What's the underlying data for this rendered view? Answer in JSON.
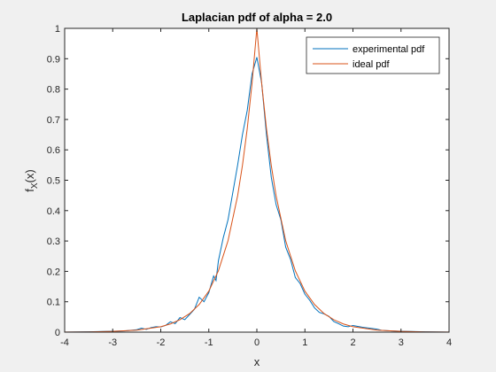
{
  "chart_data": {
    "type": "line",
    "title": "Laplacian pdf of alpha = 2.0",
    "xlabel": "x",
    "ylabel_main": "f",
    "ylabel_sub": "X",
    "ylabel_tail": "(x)",
    "xlim": [
      -4,
      4
    ],
    "ylim": [
      0,
      1
    ],
    "xticks": [
      "-4",
      "-3",
      "-2",
      "-1",
      "0",
      "1",
      "2",
      "3",
      "4"
    ],
    "yticks": [
      "0",
      "0.1",
      "0.2",
      "0.3",
      "0.4",
      "0.5",
      "0.6",
      "0.7",
      "0.8",
      "0.9",
      "1"
    ],
    "grid": false,
    "legend_position": "top-right",
    "series": [
      {
        "name": "experimental pdf",
        "color": "#0072BD",
        "x": [
          -4.0,
          -3.5,
          -3.0,
          -2.75,
          -2.5,
          -2.4,
          -2.3,
          -2.2,
          -2.1,
          -2.0,
          -1.9,
          -1.8,
          -1.7,
          -1.6,
          -1.5,
          -1.4,
          -1.3,
          -1.2,
          -1.1,
          -1.0,
          -0.9,
          -0.85,
          -0.8,
          -0.7,
          -0.6,
          -0.5,
          -0.4,
          -0.3,
          -0.2,
          -0.1,
          0.0,
          0.1,
          0.2,
          0.3,
          0.4,
          0.5,
          0.6,
          0.7,
          0.8,
          0.9,
          1.0,
          1.1,
          1.2,
          1.3,
          1.4,
          1.5,
          1.6,
          1.7,
          1.8,
          1.9,
          2.0,
          2.2,
          2.4,
          2.5,
          2.6,
          2.8,
          3.0,
          3.5,
          4.0
        ],
        "y": [
          0.0,
          0.001,
          0.003,
          0.004,
          0.008,
          0.013,
          0.009,
          0.015,
          0.018,
          0.017,
          0.022,
          0.034,
          0.028,
          0.048,
          0.041,
          0.058,
          0.075,
          0.115,
          0.1,
          0.13,
          0.185,
          0.17,
          0.235,
          0.31,
          0.37,
          0.46,
          0.55,
          0.65,
          0.73,
          0.85,
          0.905,
          0.82,
          0.65,
          0.51,
          0.42,
          0.37,
          0.28,
          0.24,
          0.18,
          0.16,
          0.125,
          0.105,
          0.08,
          0.065,
          0.06,
          0.052,
          0.035,
          0.028,
          0.02,
          0.018,
          0.022,
          0.016,
          0.012,
          0.01,
          0.006,
          0.004,
          0.003,
          0.001,
          0.0
        ]
      },
      {
        "name": "ideal pdf",
        "color": "#D95319",
        "x": [
          -4.0,
          -3.5,
          -3.0,
          -2.5,
          -2.0,
          -1.8,
          -1.6,
          -1.4,
          -1.2,
          -1.0,
          -0.8,
          -0.6,
          -0.4,
          -0.3,
          -0.2,
          -0.1,
          0.0,
          0.1,
          0.2,
          0.3,
          0.4,
          0.6,
          0.8,
          1.0,
          1.2,
          1.4,
          1.6,
          1.8,
          2.0,
          2.5,
          3.0,
          3.5,
          4.0
        ],
        "y": [
          0.0003,
          0.0009,
          0.0025,
          0.0067,
          0.018,
          0.027,
          0.041,
          0.061,
          0.091,
          0.135,
          0.202,
          0.301,
          0.449,
          0.549,
          0.67,
          0.819,
          1.0,
          0.819,
          0.67,
          0.549,
          0.449,
          0.301,
          0.202,
          0.135,
          0.091,
          0.061,
          0.041,
          0.027,
          0.018,
          0.0067,
          0.0025,
          0.0009,
          0.0003
        ]
      }
    ]
  }
}
